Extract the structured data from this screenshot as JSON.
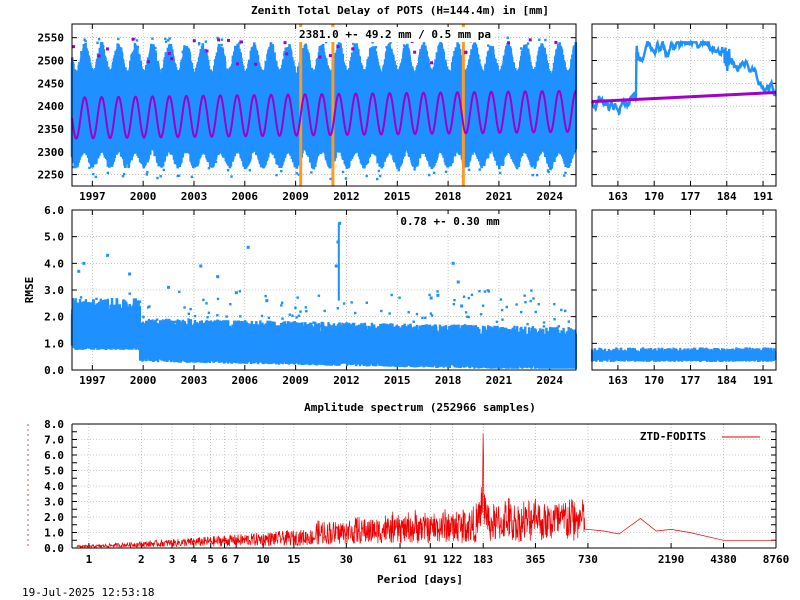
{
  "colors": {
    "ztd": "#1e90ff",
    "ztd_dark": "#0a6cd8",
    "model": "#a000c8",
    "events": "#ff9a20",
    "spectrum": "#ee0000"
  },
  "footer": {
    "timestamp": "19-Jul-2025 12:53:18"
  },
  "chart_data": [
    {
      "id": "ztd_timeseries",
      "type": "scatter",
      "title": "Zenith Total Delay of POTS (H=144.4m) in [mm]",
      "annotation": "2381.0 +-  49.2 mm /  0.5 mm pa",
      "xlim": [
        1995.8,
        2025.55
      ],
      "ylim": [
        2225,
        2580
      ],
      "xticks": [
        "1997",
        "2000",
        "2003",
        "2006",
        "2009",
        "2012",
        "2015",
        "2018",
        "2021",
        "2024"
      ],
      "xtick_values": [
        1997,
        2000,
        2003,
        2006,
        2009,
        2012,
        2015,
        2018,
        2021,
        2024
      ],
      "yticks": [
        "2250",
        "2300",
        "2350",
        "2400",
        "2450",
        "2500",
        "2550"
      ],
      "ytick_values": [
        2250,
        2300,
        2350,
        2400,
        2450,
        2500,
        2550
      ],
      "mean": 2381.0,
      "std": 49.2,
      "trend_mm_pa": 0.5,
      "seasonal_amplitude": 45,
      "envelope_low": 2270,
      "envelope_high": 2510,
      "event_lines": [
        2009.3,
        2011.2,
        2018.9
      ],
      "grid": true
    },
    {
      "id": "ztd_recent",
      "type": "scatter",
      "xlim": [
        158,
        193.5
      ],
      "ylim": [
        2225,
        2580
      ],
      "xticks": [
        "163",
        "170",
        "177",
        "184",
        "191"
      ],
      "xtick_values": [
        163,
        170,
        177,
        184,
        191
      ],
      "trend_start": 2410,
      "trend_end": 2430,
      "grid": true
    },
    {
      "id": "rmse_timeseries",
      "type": "scatter",
      "ylabel": "RMSE",
      "annotation": "0.78 +-  0.30 mm",
      "xlim": [
        1995.8,
        2025.55
      ],
      "ylim": [
        0,
        6.0
      ],
      "xticks": [
        "1997",
        "2000",
        "2003",
        "2006",
        "2009",
        "2012",
        "2015",
        "2018",
        "2021",
        "2024"
      ],
      "xtick_values": [
        1997,
        2000,
        2003,
        2006,
        2009,
        2012,
        2015,
        2018,
        2021,
        2024
      ],
      "yticks": [
        "0.0",
        "1.0",
        "2.0",
        "3.0",
        "4.0",
        "5.0",
        "6.0"
      ],
      "ytick_values": [
        0,
        1,
        2,
        3,
        4,
        5,
        6
      ],
      "level_early": 1.45,
      "level_late": 0.6,
      "outliers": [
        {
          "x": 1996.2,
          "y": 3.7
        },
        {
          "x": 1996.5,
          "y": 4.0
        },
        {
          "x": 1997.9,
          "y": 4.3
        },
        {
          "x": 1999.2,
          "y": 3.6
        },
        {
          "x": 2001.5,
          "y": 3.1
        },
        {
          "x": 2003.4,
          "y": 3.9
        },
        {
          "x": 2004.4,
          "y": 3.5
        },
        {
          "x": 2005.5,
          "y": 2.9
        },
        {
          "x": 2006.2,
          "y": 4.6
        },
        {
          "x": 2007.3,
          "y": 2.6
        },
        {
          "x": 2011.6,
          "y": 5.5
        },
        {
          "x": 2011.5,
          "y": 4.8
        },
        {
          "x": 2011.4,
          "y": 3.9
        },
        {
          "x": 2017.0,
          "y": 2.7
        },
        {
          "x": 2017.4,
          "y": 2.8
        },
        {
          "x": 2018.3,
          "y": 4.0
        },
        {
          "x": 2018.6,
          "y": 3.3
        },
        {
          "x": 2018.8,
          "y": 2.4
        }
      ],
      "grid": true
    },
    {
      "id": "rmse_recent",
      "type": "scatter",
      "xlim": [
        158,
        193.5
      ],
      "ylim": [
        0,
        6.0
      ],
      "xticks": [
        "163",
        "170",
        "177",
        "184",
        "191"
      ],
      "xtick_values": [
        163,
        170,
        177,
        184,
        191
      ],
      "level": 0.55,
      "grid": true
    },
    {
      "id": "amplitude_spectrum",
      "type": "line",
      "title": "Amplitude spectrum (252966 samples)",
      "xlabel": "Period [days]",
      "xscale": "log",
      "xlim": [
        0.8,
        8760
      ],
      "ylim": [
        0,
        8.0
      ],
      "xticks": [
        "1",
        "2",
        "3",
        "4",
        "5",
        "6",
        "7",
        "10",
        "15",
        "30",
        "61",
        "91",
        "122",
        "183",
        "365",
        "730",
        "2190",
        "4380",
        "8760"
      ],
      "xtick_values": [
        1,
        2,
        3,
        4,
        5,
        6,
        7,
        10,
        15,
        30,
        61,
        91,
        122,
        183,
        365,
        730,
        2190,
        4380,
        8760
      ],
      "yticks": [
        "0.0",
        "0.5",
        "1.0",
        "1.5",
        "2.0",
        "2.5",
        "3.0",
        "3.5",
        "4.0",
        "4.5",
        "5.0",
        "5.5",
        "6.0",
        "6.5",
        "7.0",
        "7.5",
        "8.0"
      ],
      "ytick_values": [
        0,
        0.5,
        1.0,
        1.5,
        2.0,
        2.5,
        3.0,
        3.5,
        4.0,
        4.5,
        5.0,
        5.5,
        6.0,
        6.5,
        7.0,
        7.5,
        8.0
      ],
      "legend": "ZTD-FODITS",
      "legend_position": "top-right",
      "peaks": [
        {
          "x": 183,
          "y": 7.6
        },
        {
          "x": 365,
          "y": 3.0
        },
        {
          "x": 730,
          "y": 2.1
        },
        {
          "x": 1460,
          "y": 1.9
        },
        {
          "x": 250,
          "y": 1.5
        }
      ],
      "long_period_tail": [
        {
          "x": 900,
          "y": 1.1
        },
        {
          "x": 1100,
          "y": 0.9
        },
        {
          "x": 1460,
          "y": 1.9
        },
        {
          "x": 1800,
          "y": 1.1
        },
        {
          "x": 2190,
          "y": 1.2
        },
        {
          "x": 2800,
          "y": 1.0
        },
        {
          "x": 4380,
          "y": 0.5
        },
        {
          "x": 8760,
          "y": 0.5
        }
      ],
      "grid": true
    }
  ]
}
